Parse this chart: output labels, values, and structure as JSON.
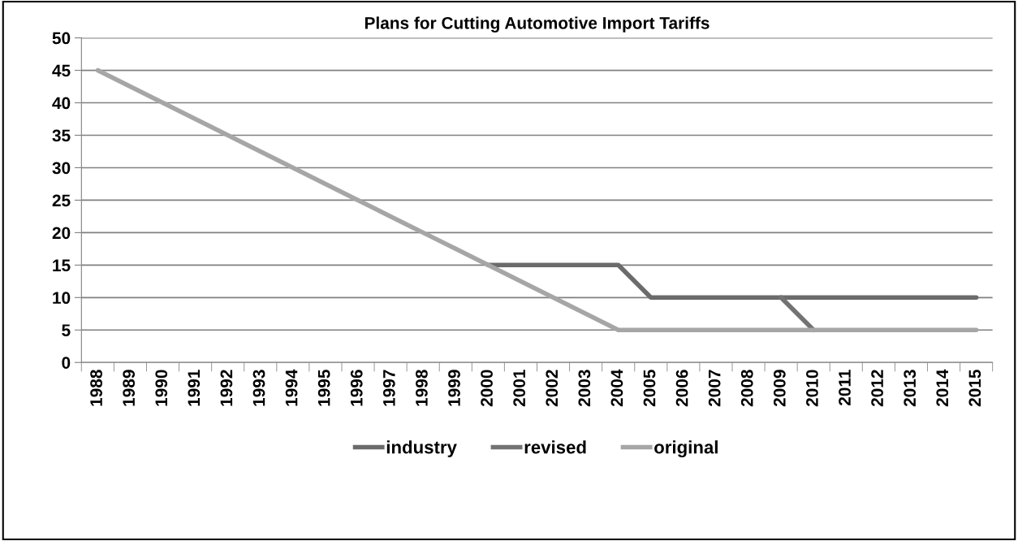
{
  "chart_data": {
    "type": "line",
    "title": "Plans for Cutting Automotive Import Tariffs",
    "categories": [
      "1988",
      "1989",
      "1990",
      "1991",
      "1992",
      "1993",
      "1994",
      "1995",
      "1996",
      "1997",
      "1998",
      "1999",
      "2000",
      "2001",
      "2002",
      "2003",
      "2004",
      "2005",
      "2006",
      "2007",
      "2008",
      "2009",
      "2010",
      "2011",
      "2012",
      "2013",
      "2014",
      "2015"
    ],
    "series": [
      {
        "name": "industry",
        "color": "#6b6b6b",
        "values": [
          null,
          null,
          null,
          null,
          null,
          null,
          null,
          null,
          null,
          null,
          null,
          null,
          15,
          15,
          15,
          15,
          15,
          10,
          10,
          10,
          10,
          10,
          10,
          10,
          10,
          10,
          10,
          10
        ]
      },
      {
        "name": "revised",
        "color": "#737373",
        "values": [
          null,
          null,
          null,
          null,
          null,
          null,
          null,
          null,
          null,
          null,
          null,
          null,
          null,
          null,
          null,
          null,
          null,
          null,
          null,
          null,
          null,
          10,
          5,
          null,
          null,
          null,
          null,
          null
        ]
      },
      {
        "name": "original",
        "color": "#a6a6a6",
        "values": [
          45,
          42.5,
          40,
          37.5,
          35,
          32.5,
          30,
          27.5,
          25,
          22.5,
          20,
          17.5,
          15,
          12.5,
          10,
          7.5,
          5,
          5,
          5,
          5,
          5,
          5,
          5,
          5,
          5,
          5,
          5,
          5
        ]
      }
    ],
    "ylim": [
      0,
      50
    ],
    "yticks": [
      0,
      5,
      10,
      15,
      20,
      25,
      30,
      35,
      40,
      45,
      50
    ],
    "grid": "y",
    "legend": "bottom",
    "marker": "none",
    "line_style": "solid"
  }
}
